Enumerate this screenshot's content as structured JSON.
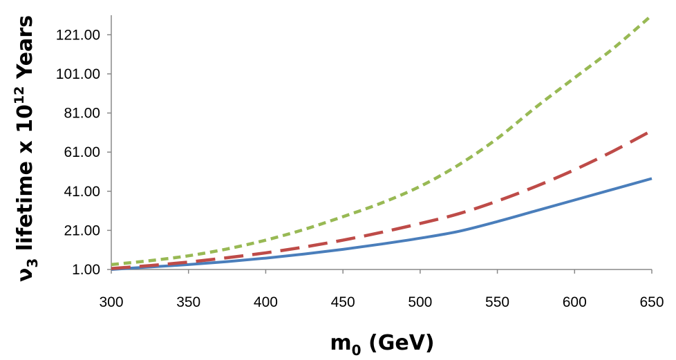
{
  "chart_data": {
    "type": "line",
    "title": "",
    "xlabel": {
      "main": "m",
      "sub": "0",
      "rest": " (GeV)"
    },
    "ylabel": {
      "symbol": "ν",
      "symbol_sub": "3",
      "middle": " lifetime x 10",
      "exponent": "12",
      "unit": " Years"
    },
    "xlim": [
      300,
      650
    ],
    "ylim": [
      1.0,
      131.0
    ],
    "xticks": [
      300,
      350,
      400,
      450,
      500,
      550,
      600,
      650
    ],
    "yticks": [
      1.0,
      21.0,
      41.0,
      61.0,
      81.0,
      101.0,
      121.0
    ],
    "xtick_labels": [
      "300",
      "350",
      "400",
      "450",
      "500",
      "550",
      "600",
      "650"
    ],
    "ytick_labels": [
      "1.00",
      "21.00",
      "41.00",
      "61.00",
      "81.00",
      "101.00",
      "121.00"
    ],
    "grid": false,
    "legend": "none",
    "series": [
      {
        "name": "solid",
        "color": "#4a7ebb",
        "style": "solid",
        "x": [
          300,
          325,
          350,
          375,
          400,
          425,
          450,
          475,
          500,
          525,
          550,
          575,
          600,
          625,
          650
        ],
        "values": [
          1.0,
          2.3,
          3.5,
          5.0,
          6.8,
          8.9,
          11.3,
          14.0,
          17.0,
          20.5,
          25.5,
          31.0,
          36.5,
          42.0,
          47.5
        ]
      },
      {
        "name": "long-dash",
        "color": "#be4b48",
        "style": "dashed",
        "x": [
          300,
          325,
          350,
          375,
          400,
          425,
          450,
          475,
          500,
          525,
          550,
          575,
          600,
          625,
          650
        ],
        "values": [
          1.5,
          3.0,
          4.8,
          7.0,
          9.5,
          12.5,
          16.0,
          20.0,
          24.5,
          29.5,
          36.0,
          43.5,
          52.0,
          61.5,
          72.0
        ]
      },
      {
        "name": "short-dash",
        "color": "#98b954",
        "style": "dotted",
        "x": [
          300,
          325,
          350,
          375,
          400,
          425,
          450,
          475,
          500,
          525,
          550,
          575,
          600,
          625,
          650
        ],
        "values": [
          3.5,
          5.5,
          8.0,
          11.5,
          16.0,
          21.5,
          28.0,
          35.0,
          43.5,
          54.5,
          68.0,
          84.0,
          99.0,
          114.0,
          131.0
        ]
      }
    ]
  }
}
